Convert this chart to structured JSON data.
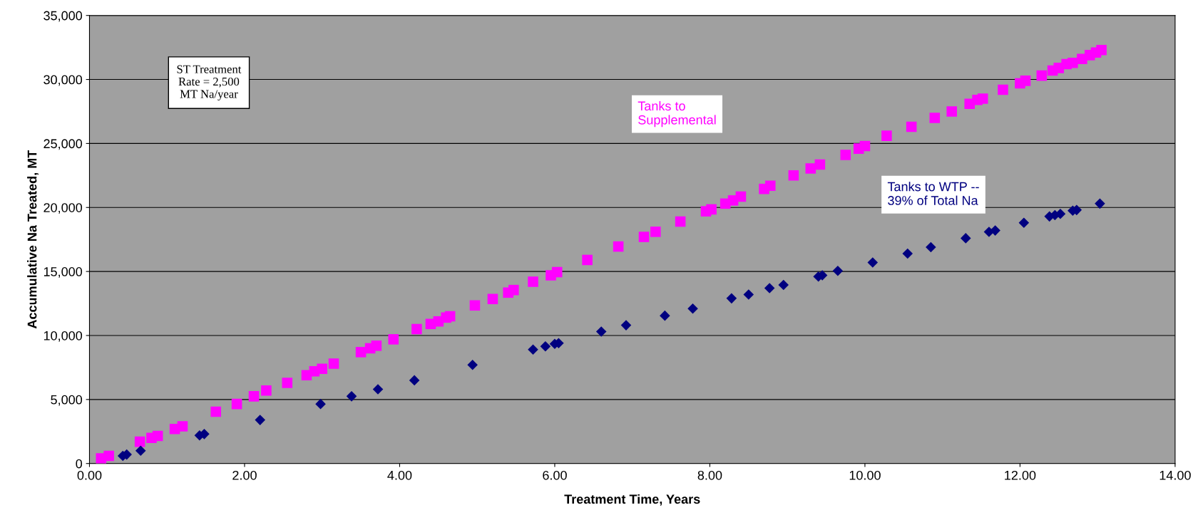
{
  "chart_data": {
    "type": "scatter",
    "xlabel": "Treatment Time, Years",
    "ylabel": "Accumulative Na Treated, MT",
    "xlim": [
      0,
      14
    ],
    "ylim": [
      0,
      35000
    ],
    "xticks": [
      {
        "value": 0,
        "label": "0.00"
      },
      {
        "value": 2,
        "label": "2.00"
      },
      {
        "value": 4,
        "label": "4.00"
      },
      {
        "value": 6,
        "label": "6.00"
      },
      {
        "value": 8,
        "label": "8.00"
      },
      {
        "value": 10,
        "label": "10.00"
      },
      {
        "value": 12,
        "label": "12.00"
      },
      {
        "value": 14,
        "label": "14.00"
      }
    ],
    "yticks": [
      {
        "value": 0,
        "label": "0"
      },
      {
        "value": 5000,
        "label": "5,000"
      },
      {
        "value": 10000,
        "label": "10,000"
      },
      {
        "value": 15000,
        "label": "15,000"
      },
      {
        "value": 20000,
        "label": "20,000"
      },
      {
        "value": 25000,
        "label": "25,000"
      },
      {
        "value": 30000,
        "label": "30,000"
      },
      {
        "value": 35000,
        "label": "35,000"
      }
    ],
    "grid": "y",
    "annotations": [
      "ST Treatment\nRate = 2,500\nMT Na/year"
    ],
    "series": [
      {
        "name": "Tanks to\nSupplemental",
        "color": "#ff00ff",
        "marker": "square",
        "x": [
          0.15,
          0.25,
          0.65,
          0.8,
          0.88,
          1.1,
          1.2,
          1.63,
          1.9,
          2.12,
          2.28,
          2.55,
          2.8,
          2.9,
          3.0,
          3.15,
          3.5,
          3.62,
          3.7,
          3.92,
          4.22,
          4.4,
          4.5,
          4.6,
          4.65,
          4.97,
          5.2,
          5.4,
          5.47,
          5.72,
          5.95,
          6.03,
          6.42,
          6.82,
          7.15,
          7.3,
          7.62,
          7.95,
          8.02,
          8.2,
          8.3,
          8.4,
          8.7,
          8.78,
          9.08,
          9.3,
          9.42,
          9.75,
          9.92,
          10.0,
          10.28,
          10.6,
          10.9,
          11.12,
          11.35,
          11.45,
          11.52,
          11.78,
          12.0,
          12.07,
          12.28,
          12.42,
          12.5,
          12.6,
          12.68,
          12.8,
          12.9,
          12.98,
          13.05
        ],
        "values": [
          400,
          600,
          1700,
          2000,
          2150,
          2700,
          2900,
          4050,
          4650,
          5250,
          5700,
          6300,
          6900,
          7200,
          7400,
          7800,
          8700,
          9000,
          9200,
          9700,
          10500,
          10900,
          11100,
          11400,
          11500,
          12350,
          12850,
          13350,
          13550,
          14200,
          14700,
          14950,
          15900,
          16950,
          17700,
          18100,
          18900,
          19700,
          19850,
          20300,
          20550,
          20850,
          21450,
          21700,
          22500,
          23050,
          23350,
          24100,
          24600,
          24800,
          25600,
          26300,
          27000,
          27500,
          28100,
          28400,
          28500,
          29200,
          29700,
          29900,
          30300,
          30700,
          30900,
          31200,
          31300,
          31600,
          31900,
          32100,
          32300
        ]
      },
      {
        "name": "Tanks to WTP --\n39% of Total Na",
        "color": "#000080",
        "marker": "diamond",
        "x": [
          0.43,
          0.48,
          0.66,
          1.42,
          1.48,
          2.2,
          2.98,
          3.38,
          3.72,
          4.19,
          4.94,
          5.72,
          5.88,
          6.0,
          6.05,
          6.6,
          6.92,
          7.42,
          7.78,
          8.28,
          8.5,
          8.77,
          8.95,
          9.4,
          9.45,
          9.65,
          10.1,
          10.55,
          10.85,
          11.3,
          11.6,
          11.68,
          12.05,
          12.38,
          12.45,
          12.52,
          12.68,
          12.73,
          13.03
        ],
        "values": [
          600,
          700,
          1000,
          2200,
          2300,
          3400,
          4650,
          5250,
          5800,
          6500,
          7700,
          8900,
          9150,
          9350,
          9400,
          10300,
          10800,
          11550,
          12100,
          12900,
          13200,
          13700,
          13950,
          14600,
          14700,
          15050,
          15700,
          16400,
          16900,
          17600,
          18100,
          18200,
          18800,
          19300,
          19400,
          19500,
          19750,
          19800,
          20300
        ]
      }
    ]
  }
}
